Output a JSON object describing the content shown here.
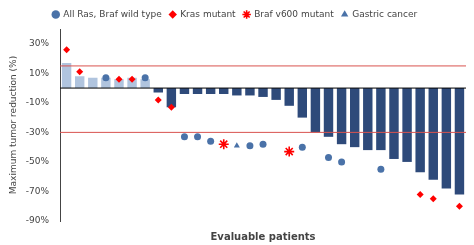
{
  "chart_data": {
    "type": "bar",
    "xlabel": "Evaluable patients",
    "ylabel": "Maximum tumor reduction (%)",
    "categories": [
      null,
      null,
      null,
      null,
      null,
      null,
      null,
      null,
      null,
      null,
      null,
      null,
      null,
      null,
      null,
      null,
      null,
      null,
      null,
      null,
      null,
      null,
      null,
      null,
      null,
      null,
      null,
      null,
      null,
      null,
      null
    ],
    "values": [
      17,
      8,
      7,
      7,
      6,
      7,
      6,
      -3,
      -13,
      -4,
      -4,
      -4,
      -4,
      -5,
      -5,
      -6,
      -8,
      -12,
      -20,
      -30,
      -33,
      -38,
      -40,
      -42,
      -42,
      -48,
      -50,
      -57,
      -62,
      -68,
      -72
    ],
    "colors": [
      "#b0c4de",
      "#b0c4de",
      "#b0c4de",
      "#b0c4de",
      "#b0c4de",
      "#b0c4de",
      "#b0c4de",
      "#2e4a7a",
      "#2e4a7a",
      "#2e4a7a",
      "#2e4a7a",
      "#2e4a7a",
      "#2e4a7a",
      "#2e4a7a",
      "#2e4a7a",
      "#2e4a7a",
      "#2e4a7a",
      "#2e4a7a",
      "#2e4a7a",
      "#2e4a7a",
      "#2e4a7a",
      "#2e4a7a",
      "#2e4a7a",
      "#2e4a7a",
      "#2e4a7a",
      "#2e4a7a",
      "#2e4a7a",
      "#2e4a7a",
      "#2e4a7a",
      "#2e4a7a",
      "#2e4a7a"
    ],
    "series": [
      {
        "name": "All Ras, Braf wild type",
        "type": "scatter",
        "marker": "circle",
        "color": "#4a72a8",
        "values": [
          null,
          null,
          null,
          7,
          null,
          null,
          7,
          null,
          null,
          -33,
          -33,
          -36,
          null,
          null,
          -39,
          -38,
          null,
          null,
          -40,
          null,
          -47,
          -50,
          null,
          null,
          -55,
          null,
          null,
          null,
          null,
          null,
          null
        ]
      },
      {
        "name": "Kras mutant",
        "type": "scatter",
        "marker": "diamond",
        "color": "red",
        "values": [
          26,
          11,
          null,
          null,
          6,
          6,
          null,
          -8,
          -13,
          null,
          null,
          null,
          null,
          null,
          null,
          null,
          null,
          null,
          null,
          null,
          null,
          null,
          null,
          null,
          null,
          null,
          null,
          -72,
          -75,
          null,
          -80
        ]
      },
      {
        "name": "Braf v600 mutant",
        "type": "scatter",
        "marker": "star",
        "color": "red",
        "values": [
          null,
          null,
          null,
          null,
          null,
          null,
          null,
          null,
          null,
          null,
          null,
          null,
          -38,
          null,
          null,
          null,
          null,
          -43,
          null,
          null,
          null,
          null,
          null,
          null,
          null,
          null,
          null,
          null,
          null,
          null,
          null
        ]
      },
      {
        "name": "Gastric cancer",
        "type": "scatter",
        "marker": "triangle",
        "color": "#4a72a8",
        "values": [
          null,
          null,
          null,
          null,
          null,
          null,
          null,
          null,
          null,
          null,
          null,
          null,
          null,
          -39,
          null,
          null,
          null,
          null,
          null,
          null,
          null,
          null,
          null,
          null,
          null,
          null,
          null,
          null,
          null,
          null,
          null
        ]
      }
    ],
    "hlines": [
      {
        "y": 0,
        "color": "black"
      },
      {
        "y": 15,
        "color": "#d9534f"
      },
      {
        "y": -30,
        "color": "#d9534f"
      }
    ],
    "ylim": [
      -90,
      40
    ],
    "yticks": [
      {
        "value": 30,
        "label": "30%"
      },
      {
        "value": 10,
        "label": "10%"
      },
      {
        "value": -10,
        "label": "-10%"
      },
      {
        "value": -30,
        "label": "-30%"
      },
      {
        "value": -50,
        "label": "-50%"
      },
      {
        "value": -70,
        "label": "-70%"
      },
      {
        "value": -90,
        "label": "-90%"
      }
    ],
    "tick_labels": "y",
    "grid": false,
    "legend": "top"
  }
}
